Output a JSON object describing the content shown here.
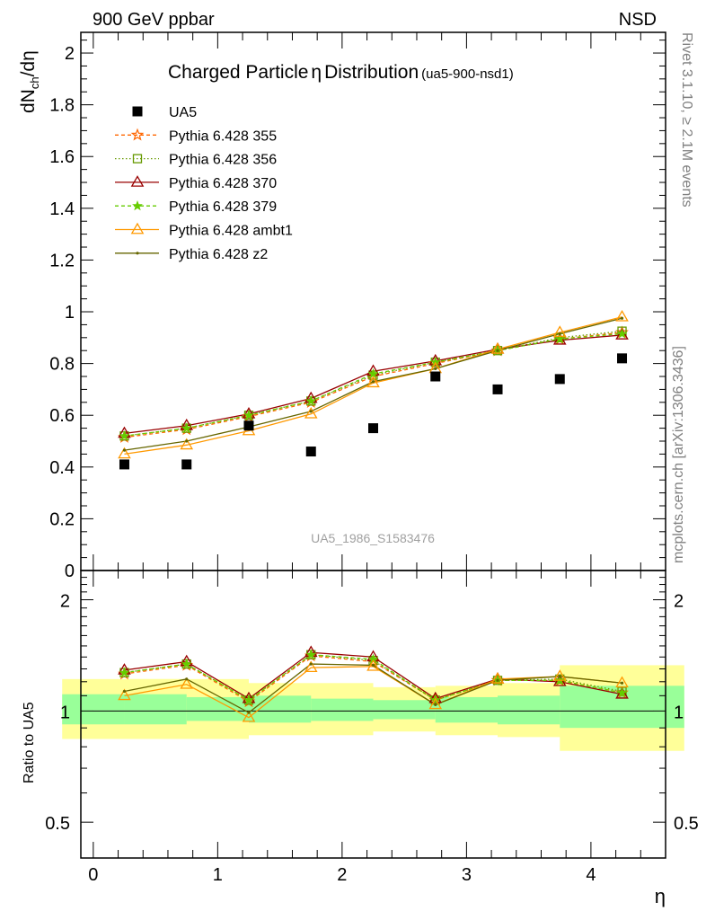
{
  "header": {
    "left": "900 GeV ppbar",
    "right": "NSD"
  },
  "side_labels": {
    "rivet": "Rivet 3.1.10, ≥ 2.1M events",
    "mcplots": "mcplots.cern.ch [arXiv:1306.3436]"
  },
  "chart_data": {
    "type": "line",
    "title": "Charged Particle",
    "title_symbol": "η",
    "title_suffix": "Distribution",
    "title_tag": "(ua5-900-nsd1)",
    "watermark": "UA5_1986_S1583476",
    "ylabel": "dN",
    "ylabel_sub": "ch",
    "ylabel_rest": "/dη",
    "xlabel": "η",
    "ratio_ylabel": "Ratio to UA5",
    "xlim": [
      -0.1,
      4.6
    ],
    "ylim": [
      0,
      2.08
    ],
    "ratio_ylim": [
      0.4,
      2.4
    ],
    "ratio_scale": "log",
    "x_ticks": [
      "0",
      "1",
      "2",
      "3",
      "4"
    ],
    "y_ticks": [
      "0",
      "0.2",
      "0.4",
      "0.6",
      "0.8",
      "1",
      "1.2",
      "1.4",
      "1.6",
      "1.8",
      "2"
    ],
    "ratio_ticks": [
      "0.5",
      "1",
      "2"
    ],
    "x": [
      0.25,
      0.75,
      1.25,
      1.75,
      2.25,
      2.75,
      3.25,
      3.75,
      4.25
    ],
    "data": {
      "name": "UA5",
      "color": "#000000",
      "values": [
        0.41,
        0.41,
        0.56,
        0.46,
        0.55,
        0.75,
        0.7,
        0.74,
        0.82
      ]
    },
    "bands": {
      "inner_color": "#99ff99",
      "outer_color": "#ffff99",
      "inner": [
        [
          0.92,
          1.11
        ],
        [
          0.92,
          1.11
        ],
        [
          0.94,
          1.09
        ],
        [
          0.93,
          1.1
        ],
        [
          0.94,
          1.08
        ],
        [
          0.95,
          1.07
        ],
        [
          0.93,
          1.09
        ],
        [
          0.92,
          1.1
        ],
        [
          0.9,
          1.17
        ]
      ],
      "outer": [
        [
          0.84,
          1.22
        ],
        [
          0.84,
          1.22
        ],
        [
          0.88,
          1.17
        ],
        [
          0.86,
          1.19
        ],
        [
          0.88,
          1.16
        ],
        [
          0.89,
          1.14
        ],
        [
          0.86,
          1.17
        ],
        [
          0.85,
          1.19
        ],
        [
          0.78,
          1.33
        ]
      ]
    },
    "series": [
      {
        "name": "Pythia 6.428 355",
        "color": "#ff6600",
        "dash": "4,3",
        "marker": "star",
        "values": [
          0.515,
          0.545,
          0.595,
          0.65,
          0.75,
          0.8,
          0.85,
          0.895,
          0.92
        ],
        "ratio": [
          1.26,
          1.33,
          1.06,
          1.41,
          1.36,
          1.07,
          1.21,
          1.21,
          1.12
        ]
      },
      {
        "name": "Pythia 6.428 356",
        "color": "#669900",
        "dash": "1.5,2.5",
        "marker": "square-open",
        "values": [
          0.52,
          0.55,
          0.6,
          0.655,
          0.755,
          0.805,
          0.85,
          0.9,
          0.925
        ],
        "ratio": [
          1.27,
          1.34,
          1.07,
          1.42,
          1.37,
          1.07,
          1.21,
          1.22,
          1.13
        ]
      },
      {
        "name": "Pythia 6.428 370",
        "color": "#990000",
        "dash": "",
        "marker": "triangle-open",
        "values": [
          0.53,
          0.56,
          0.605,
          0.665,
          0.77,
          0.81,
          0.855,
          0.89,
          0.91
        ],
        "ratio": [
          1.29,
          1.36,
          1.08,
          1.44,
          1.4,
          1.08,
          1.22,
          1.2,
          1.11
        ]
      },
      {
        "name": "Pythia 6.428 379",
        "color": "#66cc00",
        "dash": "4,3",
        "marker": "star-small",
        "values": [
          0.52,
          0.55,
          0.6,
          0.655,
          0.76,
          0.805,
          0.85,
          0.895,
          0.915
        ],
        "ratio": [
          1.27,
          1.34,
          1.07,
          1.42,
          1.38,
          1.07,
          1.21,
          1.21,
          1.12
        ]
      },
      {
        "name": "Pythia 6.428 ambt1",
        "color": "#ff9900",
        "dash": "",
        "marker": "triangle-open",
        "values": [
          0.45,
          0.485,
          0.54,
          0.605,
          0.725,
          0.78,
          0.855,
          0.92,
          0.98
        ],
        "ratio": [
          1.1,
          1.18,
          0.96,
          1.31,
          1.32,
          1.04,
          1.22,
          1.24,
          1.19
        ]
      },
      {
        "name": "Pythia 6.428 z2",
        "color": "#666600",
        "dash": "",
        "marker": "dot",
        "values": [
          0.465,
          0.5,
          0.555,
          0.615,
          0.73,
          0.78,
          0.85,
          0.915,
          0.975
        ],
        "ratio": [
          1.13,
          1.22,
          0.99,
          1.34,
          1.33,
          1.04,
          1.21,
          1.24,
          1.19
        ]
      }
    ]
  }
}
